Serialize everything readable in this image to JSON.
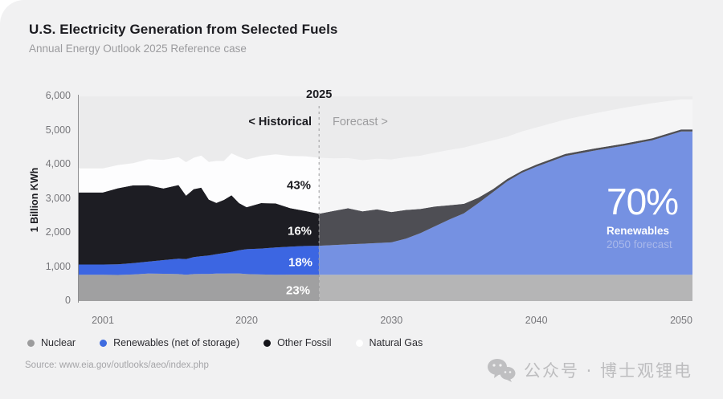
{
  "page": {
    "card_background": "#f1f1f2",
    "plot_background": "#ebebec"
  },
  "header": {
    "title": "U.S. Electricity Generation from Selected Fuels",
    "subtitle": "Annual Energy Outlook 2025 Reference case"
  },
  "chart_data": {
    "type": "area",
    "stacked": true,
    "ylabel": "1 Billion KWh",
    "ylim": [
      0,
      6000
    ],
    "grid": false,
    "legend_position": "bottom",
    "y_ticks": [
      {
        "label": "0",
        "value": 0
      },
      {
        "label": "1,000",
        "value": 1000
      },
      {
        "label": "2,000",
        "value": 2000
      },
      {
        "label": "3,000",
        "value": 3000
      },
      {
        "label": "4,000",
        "value": 4000
      },
      {
        "label": "5,000",
        "value": 5000
      },
      {
        "label": "6,000",
        "value": 6000
      }
    ],
    "x_ticks": [
      {
        "label": "2001",
        "year": 2001
      },
      {
        "label": "2020",
        "year": 2020
      },
      {
        "label": "2030",
        "year": 2030
      },
      {
        "label": "2040",
        "year": 2040
      },
      {
        "label": "2050",
        "year": 2050
      }
    ],
    "divider": {
      "year": 2025,
      "label": "2025",
      "left_label": "< Historical",
      "right_label": "Forecast >"
    },
    "x": [
      2001,
      2003,
      2005,
      2007,
      2009,
      2011,
      2012,
      2013,
      2014,
      2015,
      2016,
      2017,
      2018,
      2019,
      2020,
      2021,
      2022,
      2023,
      2024,
      2025,
      2026,
      2027,
      2028,
      2029,
      2030,
      2031,
      2032,
      2033,
      2034,
      2035,
      2036,
      2037,
      2038,
      2039,
      2040,
      2042,
      2044,
      2046,
      2048,
      2050
    ],
    "series": [
      {
        "name": "Nuclear",
        "color_historical": "#a0a0a1",
        "color_forecast": "#b5b5b6",
        "legend_color": "#9c9c9d",
        "values": [
          770,
          765,
          780,
          805,
          800,
          790,
          770,
          790,
          795,
          795,
          805,
          805,
          810,
          810,
          790,
          780,
          770,
          775,
          775,
          770,
          770,
          770,
          770,
          770,
          770,
          770,
          770,
          770,
          770,
          770,
          770,
          770,
          770,
          770,
          770,
          770,
          770,
          770,
          770,
          770
        ]
      },
      {
        "name": "Renewables (net of storage)",
        "color_historical": "#3c66e2",
        "color_forecast": "#7591e2",
        "legend_color": "#3f6ce0",
        "values": [
          300,
          310,
          330,
          350,
          400,
          450,
          460,
          500,
          520,
          540,
          570,
          600,
          630,
          680,
          730,
          760,
          800,
          820,
          840,
          850,
          870,
          890,
          910,
          930,
          950,
          1060,
          1220,
          1420,
          1620,
          1800,
          2100,
          2420,
          2740,
          2990,
          3170,
          3480,
          3640,
          3780,
          3940,
          4200
        ]
      },
      {
        "name": "Other Fossil",
        "color_historical": "#1d1d23",
        "color_forecast": "#4e4e54",
        "legend_color": "#141419",
        "values": [
          2110,
          2230,
          2280,
          2240,
          2100,
          2160,
          1860,
          1990,
          2010,
          1640,
          1500,
          1560,
          1660,
          1380,
          1230,
          1330,
          1290,
          1130,
          1030,
          940,
          1000,
          1060,
          950,
          990,
          890,
          840,
          710,
          580,
          420,
          280,
          160,
          90,
          70,
          60,
          60,
          60,
          60,
          60,
          60,
          60
        ]
      },
      {
        "name": "Natural Gas",
        "color_historical": "#fdfdfe",
        "color_forecast": "#f5f5f6",
        "legend_color": "#ffffff",
        "values": [
          710,
          680,
          650,
          760,
          840,
          820,
          980,
          920,
          940,
          1100,
          1230,
          1140,
          1230,
          1360,
          1400,
          1380,
          1440,
          1530,
          1600,
          1640,
          1540,
          1470,
          1500,
          1480,
          1540,
          1550,
          1560,
          1580,
          1620,
          1650,
          1580,
          1430,
          1240,
          1150,
          1090,
          1010,
          1030,
          1050,
          1030,
          880
        ]
      }
    ],
    "annotations": {
      "share_labels": [
        {
          "text": "43%",
          "series": "Natural Gas"
        },
        {
          "text": "16%",
          "series": "Other Fossil"
        },
        {
          "text": "18%",
          "series": "Renewables (net of storage)"
        },
        {
          "text": "23%",
          "series": "Nuclear"
        }
      ],
      "callout": {
        "value": "70%",
        "line1": "Renewables",
        "line2": "2050 forecast"
      }
    }
  },
  "footer": {
    "source": "Source: www.eia.gov/outlooks/aeo/index.php",
    "watermark": "公众号 · 博士观锂电"
  }
}
